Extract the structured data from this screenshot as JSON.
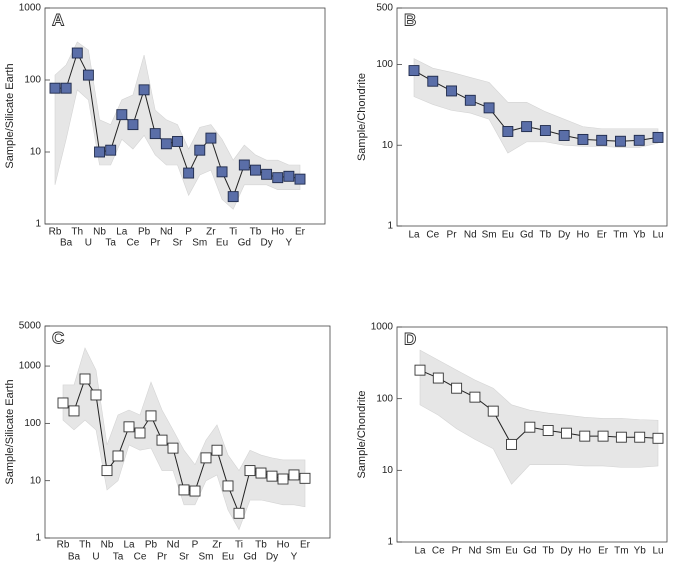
{
  "chart_data": [
    {
      "type": "line",
      "label": "A",
      "y_label": "Sample/Silicate Earth",
      "log_y": true,
      "ylim": [
        1,
        1000
      ],
      "yticks": [
        1,
        10,
        100,
        1000
      ],
      "categories": [
        "Rb",
        "Ba",
        "Th",
        "U",
        "Nb",
        "Ta",
        "La",
        "Ce",
        "Pb",
        "Pr",
        "Nd",
        "Sr",
        "P",
        "Sm",
        "Zr",
        "Eu",
        "Ti",
        "Gd",
        "Tb",
        "Dy",
        "Ho",
        "Y",
        "Er"
      ],
      "series": [
        {
          "color": "#5a6ea8",
          "edge": "#1f2a4a",
          "values": [
            77,
            77,
            237,
            117,
            10,
            10.6,
            33,
            24,
            73,
            18,
            13,
            14,
            5.1,
            10.6,
            15.6,
            5.3,
            2.4,
            6.6,
            5.6,
            4.9,
            4.4,
            4.6,
            4.2
          ]
        }
      ],
      "envelope": {
        "color": "#e6e6e6",
        "upper": [
          117,
          162,
          337,
          261,
          28,
          24,
          53,
          62,
          222,
          38,
          28,
          24,
          11,
          22,
          24,
          15,
          7.7,
          12.5,
          9.1,
          7.7,
          7.7,
          6.6,
          6.6
        ],
        "lower": [
          3.5,
          15,
          73,
          53,
          6.6,
          6.6,
          15,
          11,
          17,
          9.1,
          6.6,
          6.6,
          2.5,
          4.8,
          5.6,
          2.2,
          1.6,
          3.5,
          3.5,
          3.5,
          3,
          3,
          3
        ]
      }
    },
    {
      "type": "line",
      "label": "B",
      "y_label": "Sample/Chondrite",
      "log_y": true,
      "ylim": [
        1,
        500
      ],
      "yticks": [
        1,
        10,
        100,
        500
      ],
      "categories": [
        "La",
        "Ce",
        "Pr",
        "Nd",
        "Sm",
        "Eu",
        "Gd",
        "Tb",
        "Dy",
        "Ho",
        "Er",
        "Tm",
        "Yb",
        "Lu"
      ],
      "series": [
        {
          "color": "#5a6ea8",
          "edge": "#1f2a4a",
          "values": [
            84,
            62,
            47,
            36,
            29,
            14.8,
            17,
            15.2,
            13.2,
            11.8,
            11.5,
            11.2,
            11.5,
            12.5
          ]
        }
      ],
      "envelope": {
        "color": "#e6e6e6",
        "upper": [
          118,
          90,
          80,
          69,
          60,
          34,
          34,
          26,
          21,
          17,
          16,
          16,
          16,
          16
        ],
        "lower": [
          40,
          32,
          27,
          25,
          21,
          8,
          11,
          11,
          10,
          9.7,
          9.7,
          9.4,
          9.4,
          10.6
        ]
      }
    },
    {
      "type": "line",
      "label": "C",
      "y_label": "Sample/Silicate Earth",
      "log_y": true,
      "ylim": [
        1,
        5000
      ],
      "yticks": [
        1,
        10,
        100,
        1000,
        5000
      ],
      "categories": [
        "Rb",
        "Ba",
        "Th",
        "U",
        "Nb",
        "Ta",
        "La",
        "Ce",
        "Pb",
        "Pr",
        "Nd",
        "Sr",
        "P",
        "Sm",
        "Zr",
        "Eu",
        "Ti",
        "Gd",
        "Tb",
        "Dy",
        "Ho",
        "Y",
        "Er"
      ],
      "series": [
        {
          "color": "#ffffff",
          "edge": "#333333",
          "values": [
            227,
            165,
            595,
            313,
            15,
            27,
            87,
            68,
            135,
            51,
            37,
            6.9,
            6.6,
            25,
            34,
            8.1,
            2.7,
            15,
            13.6,
            12,
            10.7,
            12.6,
            11
          ]
        }
      ],
      "envelope": {
        "color": "#e6e6e6",
        "upper": [
          468,
          468,
          2070,
          850,
          42,
          140,
          171,
          140,
          525,
          171,
          77,
          34,
          19,
          51,
          94,
          28,
          15,
          34,
          28,
          25,
          23,
          23,
          23
        ],
        "lower": [
          114,
          77,
          114,
          77,
          6.9,
          10,
          42,
          34,
          37,
          15,
          15,
          3.8,
          3.8,
          10,
          12.6,
          3.1,
          1.4,
          4.6,
          4.6,
          4.2,
          3.8,
          3.8,
          3.5
        ]
      }
    },
    {
      "type": "line",
      "label": "D",
      "y_label": "Sample/Chondrite",
      "log_y": true,
      "ylim": [
        1,
        1000
      ],
      "yticks": [
        1,
        10,
        100,
        1000
      ],
      "categories": [
        "La",
        "Ce",
        "Pr",
        "Nd",
        "Sm",
        "Eu",
        "Gd",
        "Tb",
        "Dy",
        "Ho",
        "Er",
        "Tm",
        "Yb",
        "Lu"
      ],
      "series": [
        {
          "color": "#ffffff",
          "edge": "#333333",
          "values": [
            250,
            194,
            140,
            105,
            67,
            23,
            40,
            36,
            33,
            30,
            30,
            29,
            29,
            28
          ]
        }
      ],
      "envelope": {
        "color": "#e6e6e6",
        "upper": [
          476,
          345,
          250,
          182,
          140,
          82,
          69,
          63,
          59,
          55,
          53,
          53,
          51,
          50
        ],
        "lower": [
          82,
          59,
          38,
          27,
          20,
          6.4,
          12,
          12,
          12,
          11.5,
          11.5,
          11,
          11,
          11.5
        ]
      }
    }
  ]
}
